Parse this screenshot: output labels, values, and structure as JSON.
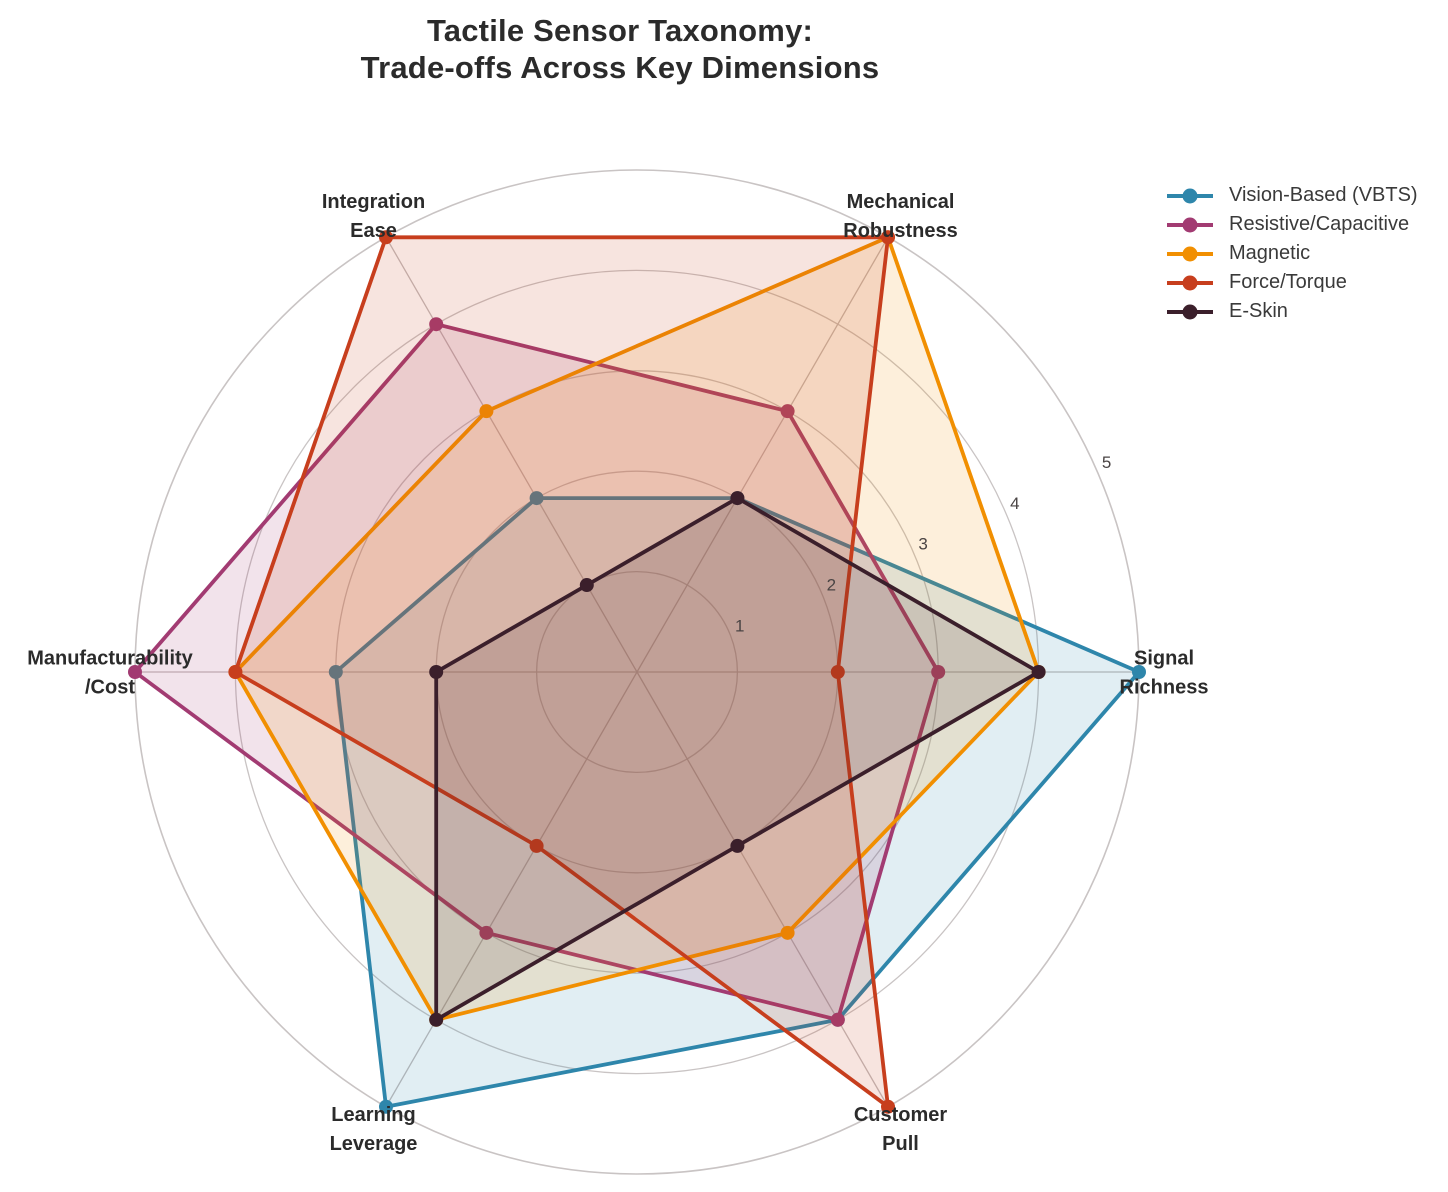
{
  "title_lines": [
    "Tactile Sensor Taxonomy:",
    "Trade-offs Across Key Dimensions"
  ],
  "chart_data": {
    "type": "radar",
    "title": "Tactile Sensor Taxonomy: Trade-offs Across Key Dimensions",
    "categories": [
      "Signal\nRichness",
      "Mechanical\nRobustness",
      "Integration\nEase",
      "Manufacturability\n/Cost",
      "Learning\nLeverage",
      "Customer\nPull"
    ],
    "angles_deg": [
      0,
      60,
      120,
      180,
      240,
      300
    ],
    "direction": "counterclockwise",
    "series": [
      {
        "name": "Vision-Based (VBTS)",
        "color": "#2E86AB",
        "values": [
          5,
          2,
          2,
          3,
          5,
          4
        ]
      },
      {
        "name": "Resistive/Capacitive",
        "color": "#A23B72",
        "values": [
          3,
          3,
          4,
          5,
          3,
          4
        ]
      },
      {
        "name": "Magnetic",
        "color": "#F18F01",
        "values": [
          4,
          5,
          3,
          4,
          4,
          3
        ]
      },
      {
        "name": "Force/Torque",
        "color": "#C73E1D",
        "values": [
          2,
          5,
          5,
          4,
          2,
          5
        ]
      },
      {
        "name": "E-Skin",
        "color": "#3B1F2B",
        "values": [
          4,
          2,
          1,
          2,
          4,
          2
        ]
      }
    ],
    "radial_ticks": [
      1,
      2,
      3,
      4,
      5
    ],
    "rmin": 0,
    "rmax": 5,
    "grid": true,
    "tick_label_angle_deg": 22.5,
    "legend_position": "upper right",
    "fill_opacity": 0.14,
    "grid_color": "#c9c4c4",
    "background_color": "#ffffff"
  }
}
